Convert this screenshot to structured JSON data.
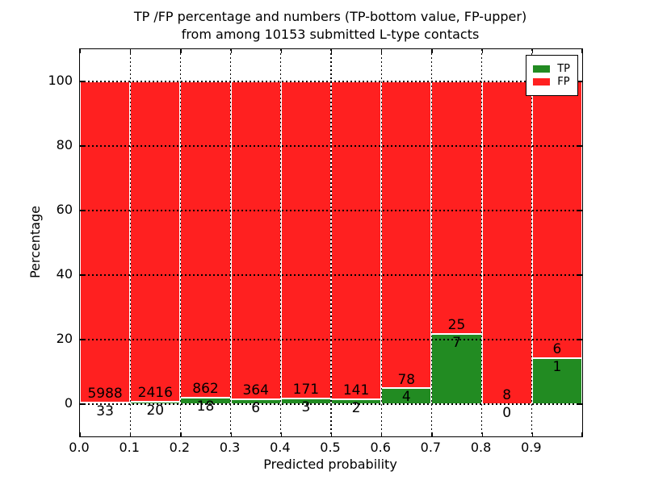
{
  "chart_data": {
    "type": "bar",
    "stacked": true,
    "normalized_to_percent": true,
    "title_line1": "TP /FP percentage and numbers (TP-bottom value, FP-upper)",
    "title_line2": "from among 10153 submitted L-type contacts",
    "xlabel": "Predicted probability",
    "ylabel": "Percentage",
    "bin_width": 0.1,
    "bin_starts": [
      0.0,
      0.1,
      0.2,
      0.3,
      0.4,
      0.5,
      0.6,
      0.7,
      0.8,
      0.9
    ],
    "series": [
      {
        "name": "TP",
        "color": "#228B22",
        "counts": [
          33,
          20,
          18,
          6,
          3,
          2,
          4,
          7,
          0,
          1
        ]
      },
      {
        "name": "FP",
        "color": "#FF2020",
        "counts": [
          5988,
          2416,
          862,
          364,
          171,
          141,
          78,
          25,
          8,
          6
        ]
      }
    ],
    "bar_edge_color": "#ffffff",
    "xlim": [
      0.0,
      1.0
    ],
    "ylim": [
      -10,
      110
    ],
    "xticks": [
      "0.0",
      "0.1",
      "0.2",
      "0.3",
      "0.4",
      "0.5",
      "0.6",
      "0.7",
      "0.8",
      "0.9"
    ],
    "yticks": [
      "0",
      "20",
      "40",
      "60",
      "80",
      "100"
    ],
    "ytick_values": [
      0,
      20,
      40,
      60,
      80,
      100
    ],
    "grid": "dotted",
    "grid_color": "#000000",
    "legend": {
      "position": "upper right",
      "entries": [
        {
          "label": "TP",
          "color": "#228B22"
        },
        {
          "label": "FP",
          "color": "#FF2020"
        }
      ]
    }
  }
}
